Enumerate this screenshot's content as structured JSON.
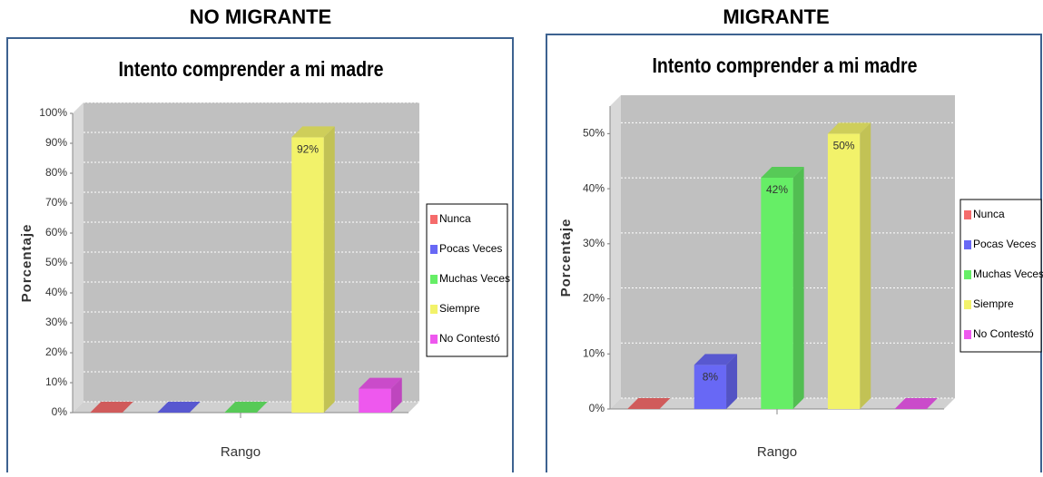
{
  "chart_data": [
    {
      "type": "bar3d",
      "header": "NO MIGRANTE",
      "title": "Intento comprender a mi madre",
      "x_label": "Rango",
      "y_label": "Porcentaje",
      "categories": [
        "Nunca",
        "Pocas Veces",
        "Muchas Veces",
        "Siempre",
        "No Contestó"
      ],
      "colors": [
        "#f56b6b",
        "#6868f5",
        "#66ee66",
        "#f2f26a",
        "#ee58ee"
      ],
      "values": [
        0,
        0,
        0,
        92,
        8
      ],
      "value_labels": [
        null,
        null,
        null,
        "92%",
        null
      ],
      "ylim": [
        0,
        100
      ],
      "yticks": [
        {
          "value": 0,
          "label": "0%"
        },
        {
          "value": 10,
          "label": "10%"
        },
        {
          "value": 20,
          "label": "20%"
        },
        {
          "value": 30,
          "label": "30%"
        },
        {
          "value": 40,
          "label": "40%"
        },
        {
          "value": 50,
          "label": "50%"
        },
        {
          "value": 60,
          "label": "60%"
        },
        {
          "value": 70,
          "label": "70%"
        },
        {
          "value": 80,
          "label": "80%"
        },
        {
          "value": 90,
          "label": "90%"
        },
        {
          "value": 100,
          "label": "100%"
        }
      ],
      "grid": true,
      "legend": "right"
    },
    {
      "type": "bar3d",
      "header": "MIGRANTE",
      "title": "Intento comprender a mi madre",
      "x_label": "Rango",
      "y_label": "Porcentaje",
      "categories": [
        "Nunca",
        "Pocas Veces",
        "Muchas Veces",
        "Siempre",
        "No Contestó"
      ],
      "colors": [
        "#f56b6b",
        "#6868f5",
        "#66ee66",
        "#f2f26a",
        "#ee58ee"
      ],
      "values": [
        0,
        8,
        42,
        50,
        0
      ],
      "value_labels": [
        null,
        "8%",
        "42%",
        "50%",
        null
      ],
      "ylim": [
        0,
        55
      ],
      "yticks": [
        {
          "value": 0,
          "label": "0%"
        },
        {
          "value": 10,
          "label": "10%"
        },
        {
          "value": 20,
          "label": "20%"
        },
        {
          "value": 30,
          "label": "30%"
        },
        {
          "value": 40,
          "label": "40%"
        },
        {
          "value": 50,
          "label": "50%"
        }
      ],
      "grid": true,
      "legend": "right"
    }
  ]
}
